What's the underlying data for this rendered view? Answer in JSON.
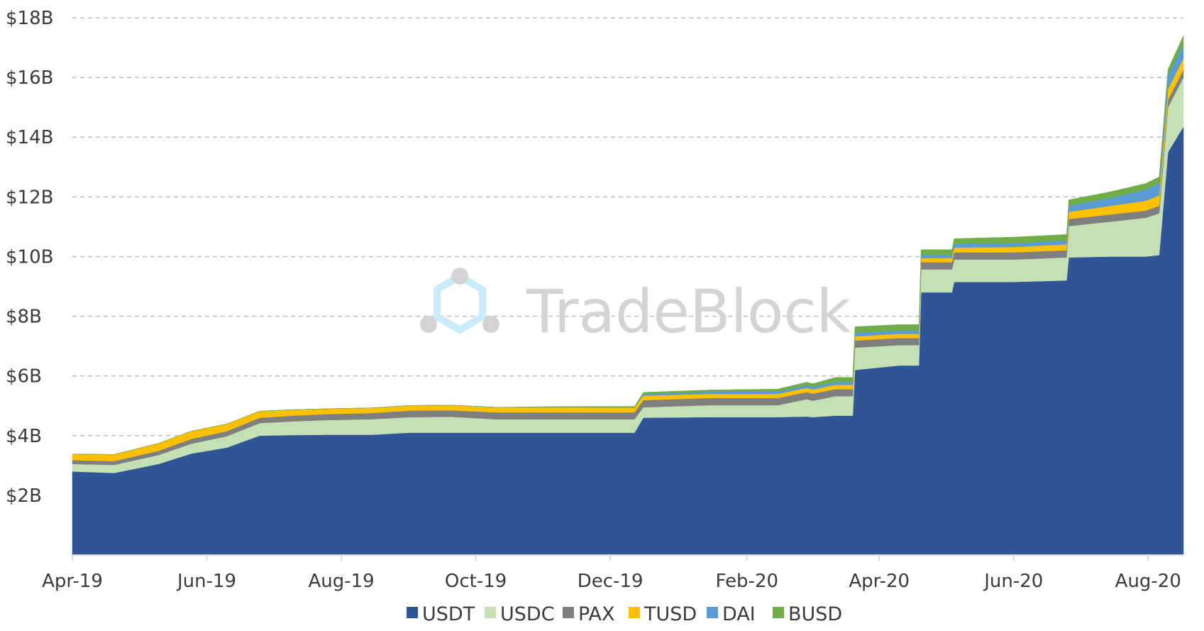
{
  "chart_data": {
    "type": "area",
    "stacked": true,
    "title": "",
    "xlabel": "",
    "ylabel": "",
    "ylim": [
      0,
      18
    ],
    "y_unit": "billions USD",
    "y_ticks": [
      "$2B",
      "$4B",
      "$6B",
      "$8B",
      "$10B",
      "$12B",
      "$14B",
      "$16B",
      "$18B"
    ],
    "y_tick_values": [
      2,
      4,
      6,
      8,
      10,
      12,
      14,
      16,
      18
    ],
    "x_ticks": [
      "Apr-19",
      "Jun-19",
      "Aug-19",
      "Oct-19",
      "Dec-19",
      "Feb-20",
      "Apr-20",
      "Jun-20",
      "Aug-20"
    ],
    "x_tick_dates": [
      "2019-04-01",
      "2019-06-01",
      "2019-08-01",
      "2019-10-01",
      "2019-12-01",
      "2020-02-01",
      "2020-04-01",
      "2020-06-01",
      "2020-08-01"
    ],
    "xlim": [
      "2019-04-01",
      "2020-08-17"
    ],
    "grid": "horizontal dashed",
    "legend_position": "bottom",
    "x": [
      "2019-04-01",
      "2019-04-20",
      "2019-05-10",
      "2019-05-25",
      "2019-06-10",
      "2019-06-25",
      "2019-07-10",
      "2019-07-25",
      "2019-08-15",
      "2019-09-01",
      "2019-09-20",
      "2019-10-10",
      "2019-10-31",
      "2019-11-20",
      "2019-12-12",
      "2019-12-16",
      "2020-01-15",
      "2020-02-15",
      "2020-02-28",
      "2020-03-02",
      "2020-03-12",
      "2020-03-20",
      "2020-03-21",
      "2020-04-10",
      "2020-04-19",
      "2020-04-20",
      "2020-05-04",
      "2020-05-05",
      "2020-06-01",
      "2020-06-25",
      "2020-06-26",
      "2020-07-15",
      "2020-07-31",
      "2020-08-06",
      "2020-08-10",
      "2020-08-17"
    ],
    "series": [
      {
        "name": "USDT",
        "color": "#2f5597",
        "values": [
          2.8,
          2.75,
          3.05,
          3.4,
          3.6,
          4.0,
          4.02,
          4.03,
          4.03,
          4.1,
          4.1,
          4.1,
          4.1,
          4.1,
          4.1,
          4.6,
          4.62,
          4.62,
          4.64,
          4.62,
          4.67,
          4.67,
          6.2,
          6.35,
          6.35,
          8.8,
          8.8,
          9.15,
          9.15,
          9.2,
          9.97,
          10.0,
          10.0,
          10.05,
          13.5,
          14.35
        ]
      },
      {
        "name": "USDC",
        "color": "#c5e0b4",
        "values": [
          0.25,
          0.27,
          0.3,
          0.33,
          0.38,
          0.42,
          0.46,
          0.49,
          0.52,
          0.52,
          0.53,
          0.45,
          0.45,
          0.45,
          0.45,
          0.35,
          0.4,
          0.4,
          0.58,
          0.55,
          0.65,
          0.65,
          0.75,
          0.68,
          0.68,
          0.77,
          0.77,
          0.75,
          0.75,
          0.77,
          1.05,
          1.17,
          1.3,
          1.4,
          1.5,
          1.65
        ]
      },
      {
        "name": "PAX",
        "color": "#7f7f7f",
        "values": [
          0.13,
          0.13,
          0.14,
          0.16,
          0.17,
          0.18,
          0.19,
          0.2,
          0.21,
          0.22,
          0.22,
          0.23,
          0.23,
          0.23,
          0.23,
          0.24,
          0.24,
          0.24,
          0.24,
          0.24,
          0.24,
          0.24,
          0.24,
          0.24,
          0.24,
          0.24,
          0.24,
          0.24,
          0.24,
          0.24,
          0.24,
          0.24,
          0.24,
          0.25,
          0.25,
          0.26
        ]
      },
      {
        "name": "TUSD",
        "color": "#ffc000",
        "values": [
          0.2,
          0.22,
          0.25,
          0.26,
          0.24,
          0.22,
          0.2,
          0.18,
          0.17,
          0.17,
          0.17,
          0.17,
          0.17,
          0.17,
          0.16,
          0.15,
          0.14,
          0.14,
          0.14,
          0.14,
          0.14,
          0.14,
          0.14,
          0.14,
          0.14,
          0.14,
          0.14,
          0.16,
          0.18,
          0.2,
          0.24,
          0.29,
          0.33,
          0.35,
          0.36,
          0.38
        ]
      },
      {
        "name": "DAI",
        "color": "#5b9bd5",
        "values": [
          0.0,
          0.0,
          0.0,
          0.0,
          0.0,
          0.0,
          0.0,
          0.0,
          0.0,
          0.0,
          0.0,
          0.0,
          0.0,
          0.0,
          0.0,
          0.06,
          0.07,
          0.08,
          0.09,
          0.09,
          0.1,
          0.1,
          0.12,
          0.11,
          0.11,
          0.1,
          0.1,
          0.12,
          0.13,
          0.13,
          0.2,
          0.27,
          0.38,
          0.42,
          0.44,
          0.48
        ]
      },
      {
        "name": "BUSD",
        "color": "#70ad47",
        "values": [
          0.0,
          0.0,
          0.0,
          0.0,
          0.0,
          0.0,
          0.0,
          0.0,
          0.0,
          0.0,
          0.0,
          0.0,
          0.02,
          0.03,
          0.04,
          0.05,
          0.06,
          0.08,
          0.1,
          0.1,
          0.15,
          0.15,
          0.2,
          0.2,
          0.2,
          0.18,
          0.18,
          0.18,
          0.2,
          0.2,
          0.2,
          0.2,
          0.2,
          0.2,
          0.22,
          0.28
        ]
      }
    ]
  },
  "watermark": {
    "text": "TradeBlock",
    "icon": "hexagon-logo-icon",
    "colors": {
      "hexagon": "#c9ecfb",
      "dots": "#d3d3d3"
    }
  },
  "gridline_color": "#bfbfbf",
  "axis_color": "#d9d9d9"
}
